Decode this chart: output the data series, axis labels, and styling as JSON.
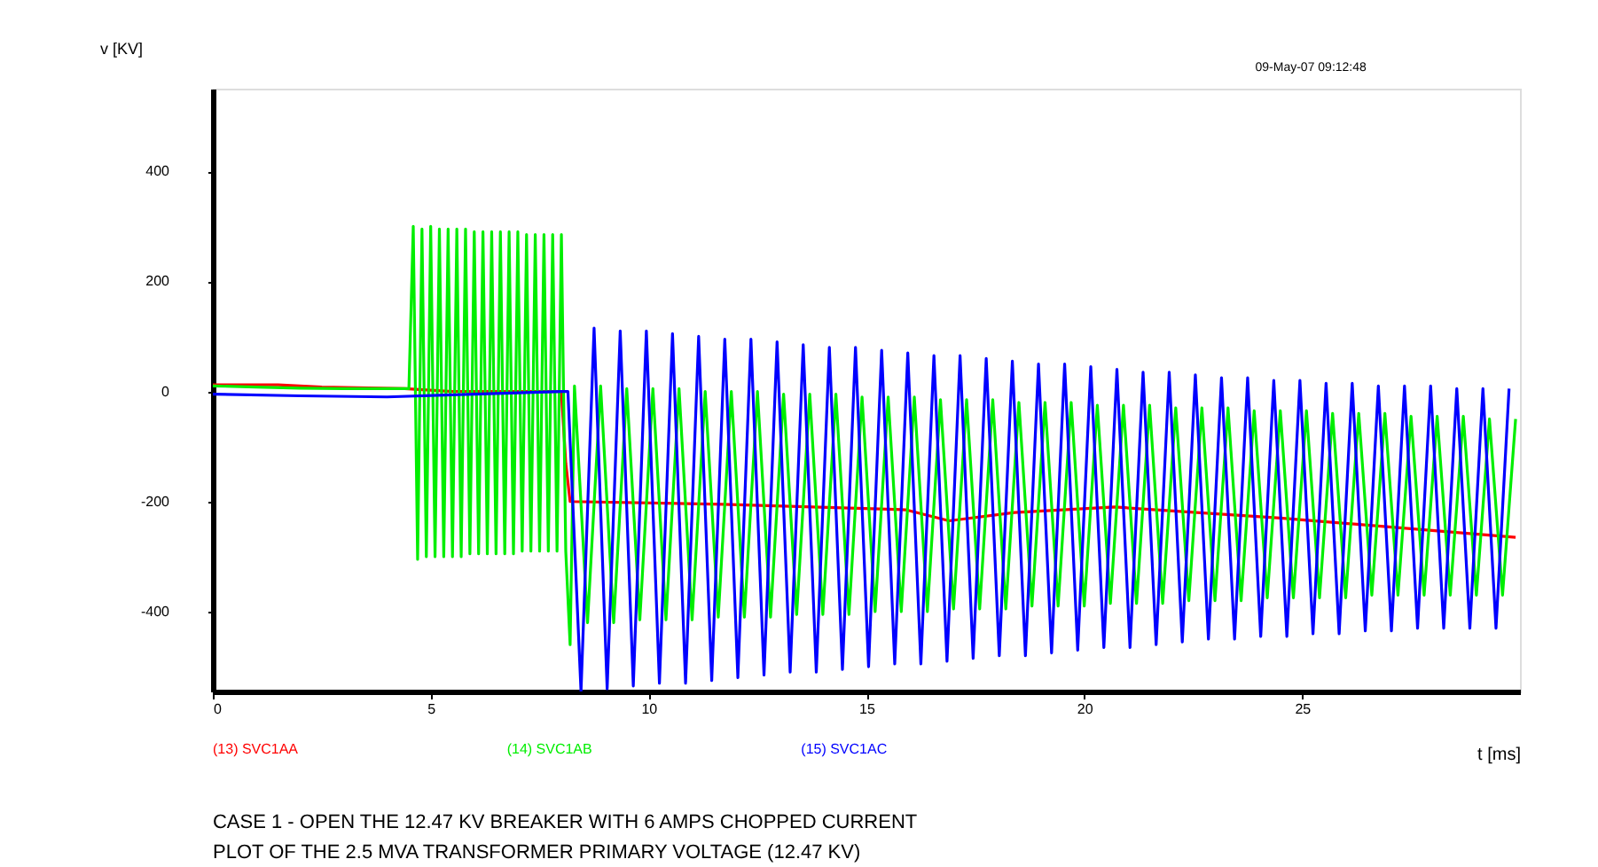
{
  "chart_data": {
    "type": "line",
    "title": "CASE 1 - OPEN THE 12.47 KV BREAKER WITH 6 AMPS CHOPPED CURRENT",
    "subtitle": "PLOT OF THE 2.5 MVA TRANSFORMER PRIMARY VOLTAGE (12.47 KV)",
    "xlabel": "t [ms]",
    "ylabel": "v [KV]",
    "annotations": [
      "09-May-07  09:12:48"
    ],
    "xlim": [
      0,
      30
    ],
    "xticks": [
      0,
      5,
      10,
      15,
      20,
      25
    ],
    "ylim": [
      -545,
      550
    ],
    "yticks": [
      -400,
      -200,
      0,
      200,
      400
    ],
    "grid": false,
    "legend": "bottom",
    "marker": "none",
    "line_style": "solid",
    "series": [
      {
        "name": "(13) SVC1AA",
        "color": "#ff0000",
        "x": [
          0,
          1.5,
          2.5,
          4.4,
          5.5,
          7.0,
          8.0,
          8.1,
          8.2,
          11.7,
          15.9,
          16.9,
          18.4,
          20.7,
          24.5,
          29.9
        ],
        "values": [
          12,
          12,
          8,
          5,
          0,
          0,
          0,
          -130,
          -200,
          -205,
          -215,
          -235,
          -220,
          -210,
          -230,
          -265
        ]
      },
      {
        "name": "(14) SVC1AB",
        "color": "#00ee00",
        "x": [
          0,
          1,
          2,
          3,
          4,
          4.5,
          4.6,
          4.7,
          4.8,
          4.9,
          5.0,
          5.1,
          5.2,
          5.3,
          5.4,
          5.5,
          5.6,
          5.7,
          5.8,
          5.9,
          6.0,
          6.1,
          6.2,
          6.3,
          6.4,
          6.5,
          6.6,
          6.7,
          6.8,
          6.9,
          7.0,
          7.1,
          7.2,
          7.3,
          7.4,
          7.5,
          7.6,
          7.7,
          7.8,
          7.9,
          8.0,
          8.1,
          8.2,
          8.3,
          8.6,
          8.9,
          9.2,
          9.5,
          9.8,
          10.1,
          10.4,
          10.7,
          11.0,
          11.3,
          11.6,
          11.9,
          12.2,
          12.5,
          12.8,
          13.1,
          13.4,
          13.7,
          14.0,
          14.3,
          14.6,
          14.9,
          15.2,
          15.5,
          15.8,
          16.1,
          16.4,
          16.7,
          17.0,
          17.3,
          17.6,
          17.9,
          18.2,
          18.5,
          18.8,
          19.1,
          19.4,
          19.7,
          20.0,
          20.3,
          20.6,
          20.9,
          21.2,
          21.5,
          21.8,
          22.1,
          22.4,
          22.7,
          23.0,
          23.3,
          23.6,
          23.9,
          24.2,
          24.5,
          24.8,
          25.1,
          25.4,
          25.7,
          26.0,
          26.3,
          26.6,
          26.9,
          27.2,
          27.5,
          27.8,
          28.1,
          28.4,
          28.7,
          29.0,
          29.3,
          29.6,
          29.9
        ],
        "values": [
          10,
          8,
          6,
          5,
          5,
          5,
          300,
          -305,
          295,
          -300,
          300,
          -300,
          295,
          -300,
          295,
          -300,
          295,
          -300,
          295,
          -295,
          290,
          -295,
          290,
          -295,
          290,
          -295,
          290,
          -295,
          290,
          -295,
          290,
          -290,
          285,
          -290,
          285,
          -290,
          285,
          -290,
          285,
          -290,
          285,
          -290,
          -460,
          10,
          -420,
          10,
          -420,
          5,
          -415,
          5,
          -415,
          5,
          -415,
          0,
          -410,
          0,
          -410,
          0,
          -410,
          -5,
          -405,
          -5,
          -405,
          -5,
          -405,
          -10,
          -400,
          -10,
          -400,
          -10,
          -400,
          -15,
          -395,
          -15,
          -395,
          -15,
          -395,
          -20,
          -390,
          -20,
          -390,
          -20,
          -390,
          -25,
          -385,
          -25,
          -385,
          -25,
          -385,
          -30,
          -380,
          -30,
          -380,
          -30,
          -380,
          -35,
          -375,
          -35,
          -375,
          -35,
          -375,
          -40,
          -375,
          -40,
          -370,
          -40,
          -370,
          -45,
          -370,
          -45,
          -370,
          -45,
          -370,
          -50,
          -370,
          -50
        ]
      },
      {
        "name": "(15) SVC1AC",
        "color": "#0000ff",
        "x": [
          0,
          2,
          4,
          6,
          8,
          8.15,
          8.45,
          8.75,
          9.05,
          9.35,
          9.65,
          9.95,
          10.25,
          10.55,
          10.85,
          11.15,
          11.45,
          11.75,
          12.05,
          12.35,
          12.65,
          12.95,
          13.25,
          13.55,
          13.85,
          14.15,
          14.45,
          14.75,
          15.05,
          15.35,
          15.65,
          15.95,
          16.25,
          16.55,
          16.85,
          17.15,
          17.45,
          17.75,
          18.05,
          18.35,
          18.65,
          18.95,
          19.25,
          19.55,
          19.85,
          20.15,
          20.45,
          20.75,
          21.05,
          21.35,
          21.65,
          21.95,
          22.25,
          22.55,
          22.85,
          23.15,
          23.45,
          23.75,
          24.05,
          24.35,
          24.65,
          24.95,
          25.25,
          25.55,
          25.85,
          26.15,
          26.45,
          26.75,
          27.05,
          27.35,
          27.65,
          27.95,
          28.25,
          28.55,
          28.85,
          29.15,
          29.45,
          29.75
        ],
        "values": [
          -5,
          -8,
          -10,
          -5,
          0,
          0,
          -545,
          115,
          -540,
          110,
          -535,
          110,
          -530,
          105,
          -530,
          100,
          -525,
          95,
          -520,
          95,
          -515,
          90,
          -510,
          85,
          -510,
          80,
          -505,
          80,
          -500,
          75,
          -495,
          70,
          -495,
          65,
          -490,
          65,
          -485,
          60,
          -480,
          55,
          -480,
          50,
          -475,
          50,
          -470,
          45,
          -465,
          40,
          -465,
          35,
          -460,
          35,
          -455,
          30,
          -450,
          25,
          -450,
          25,
          -445,
          20,
          -445,
          20,
          -440,
          15,
          -440,
          15,
          -435,
          10,
          -435,
          10,
          -430,
          10,
          -430,
          5,
          -430,
          5,
          -430,
          5
        ]
      }
    ]
  }
}
